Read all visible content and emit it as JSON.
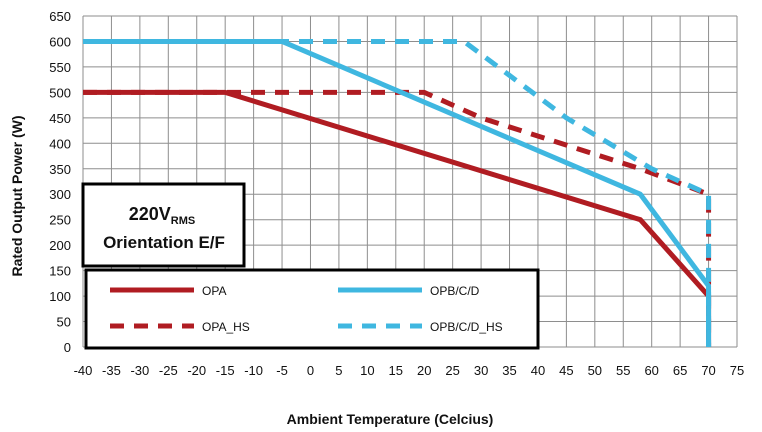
{
  "chart_data": {
    "type": "line",
    "xlabel": "Ambient Temperature (Celcius)",
    "ylabel": "Rated Output Power (W)",
    "xlim": [
      -40,
      75
    ],
    "ylim": [
      0,
      650
    ],
    "x_ticks": [
      -40,
      -35,
      -30,
      -25,
      -20,
      -15,
      -10,
      -5,
      0,
      5,
      10,
      15,
      20,
      25,
      30,
      35,
      40,
      45,
      50,
      55,
      60,
      65,
      70,
      75
    ],
    "y_ticks": [
      0,
      50,
      100,
      150,
      200,
      250,
      300,
      350,
      400,
      450,
      500,
      550,
      600,
      650
    ],
    "grid": true,
    "annotation": {
      "line1": "220V",
      "line1_sub": "RMS",
      "line2": "Orientation E/F"
    },
    "legend_placement": "bottom-left",
    "series": [
      {
        "name": "OPA",
        "color": "#b01c22",
        "style": "solid",
        "points": [
          [
            -40,
            500
          ],
          [
            -15,
            500
          ],
          [
            58,
            250
          ],
          [
            70,
            100
          ],
          [
            70,
            0
          ]
        ]
      },
      {
        "name": "OPB/C/D",
        "color": "#3fb7e0",
        "style": "solid",
        "points": [
          [
            -40,
            600
          ],
          [
            -5,
            600
          ],
          [
            58,
            300
          ],
          [
            70,
            120
          ],
          [
            70,
            0
          ]
        ]
      },
      {
        "name": "OPA_HS",
        "color": "#b01c22",
        "style": "dashed",
        "points": [
          [
            -40,
            500
          ],
          [
            20,
            500
          ],
          [
            30,
            450
          ],
          [
            58,
            350
          ],
          [
            70,
            300
          ],
          [
            70,
            0
          ]
        ]
      },
      {
        "name": "OPB/C/D_HS",
        "color": "#3fb7e0",
        "style": "dashed",
        "points": [
          [
            -40,
            600
          ],
          [
            27,
            600
          ],
          [
            45,
            450
          ],
          [
            60,
            350
          ],
          [
            70,
            300
          ],
          [
            70,
            0
          ]
        ]
      }
    ]
  }
}
